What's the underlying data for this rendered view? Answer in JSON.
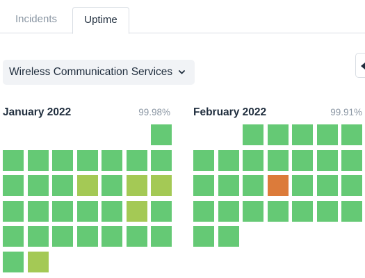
{
  "tabs": [
    {
      "label": "Incidents",
      "active": false
    },
    {
      "label": "Uptime",
      "active": true
    }
  ],
  "service_select": {
    "selected": "Wireless Communication Services",
    "icon": "chevron-down-icon"
  },
  "side_button": {
    "icon": "caret-left-icon"
  },
  "status_colors": {
    "operational": "#65c975",
    "minor_outage": "#a4c955",
    "major_outage": "#dc7b3a"
  },
  "months": [
    {
      "title": "January 2022",
      "uptime": "99.98%",
      "first_weekday": 6,
      "days": [
        "up",
        "up",
        "up",
        "up",
        "up",
        "up",
        "up",
        "up",
        "up",
        "up",
        "up",
        "minor",
        "up",
        "minor",
        "minor",
        "up",
        "up",
        "up",
        "up",
        "up",
        "minor",
        "up",
        "up",
        "up",
        "up",
        "up",
        "up",
        "up",
        "up",
        "up",
        "minor"
      ]
    },
    {
      "title": "February 2022",
      "uptime": "99.91%",
      "first_weekday": 2,
      "days": [
        "up",
        "up",
        "up",
        "up",
        "up",
        "up",
        "up",
        "up",
        "up",
        "up",
        "up",
        "up",
        "up",
        "up",
        "up",
        "major",
        "up",
        "up",
        "up",
        "up",
        "up",
        "up",
        "up",
        "up",
        "up",
        "up",
        "up",
        "up"
      ]
    }
  ]
}
